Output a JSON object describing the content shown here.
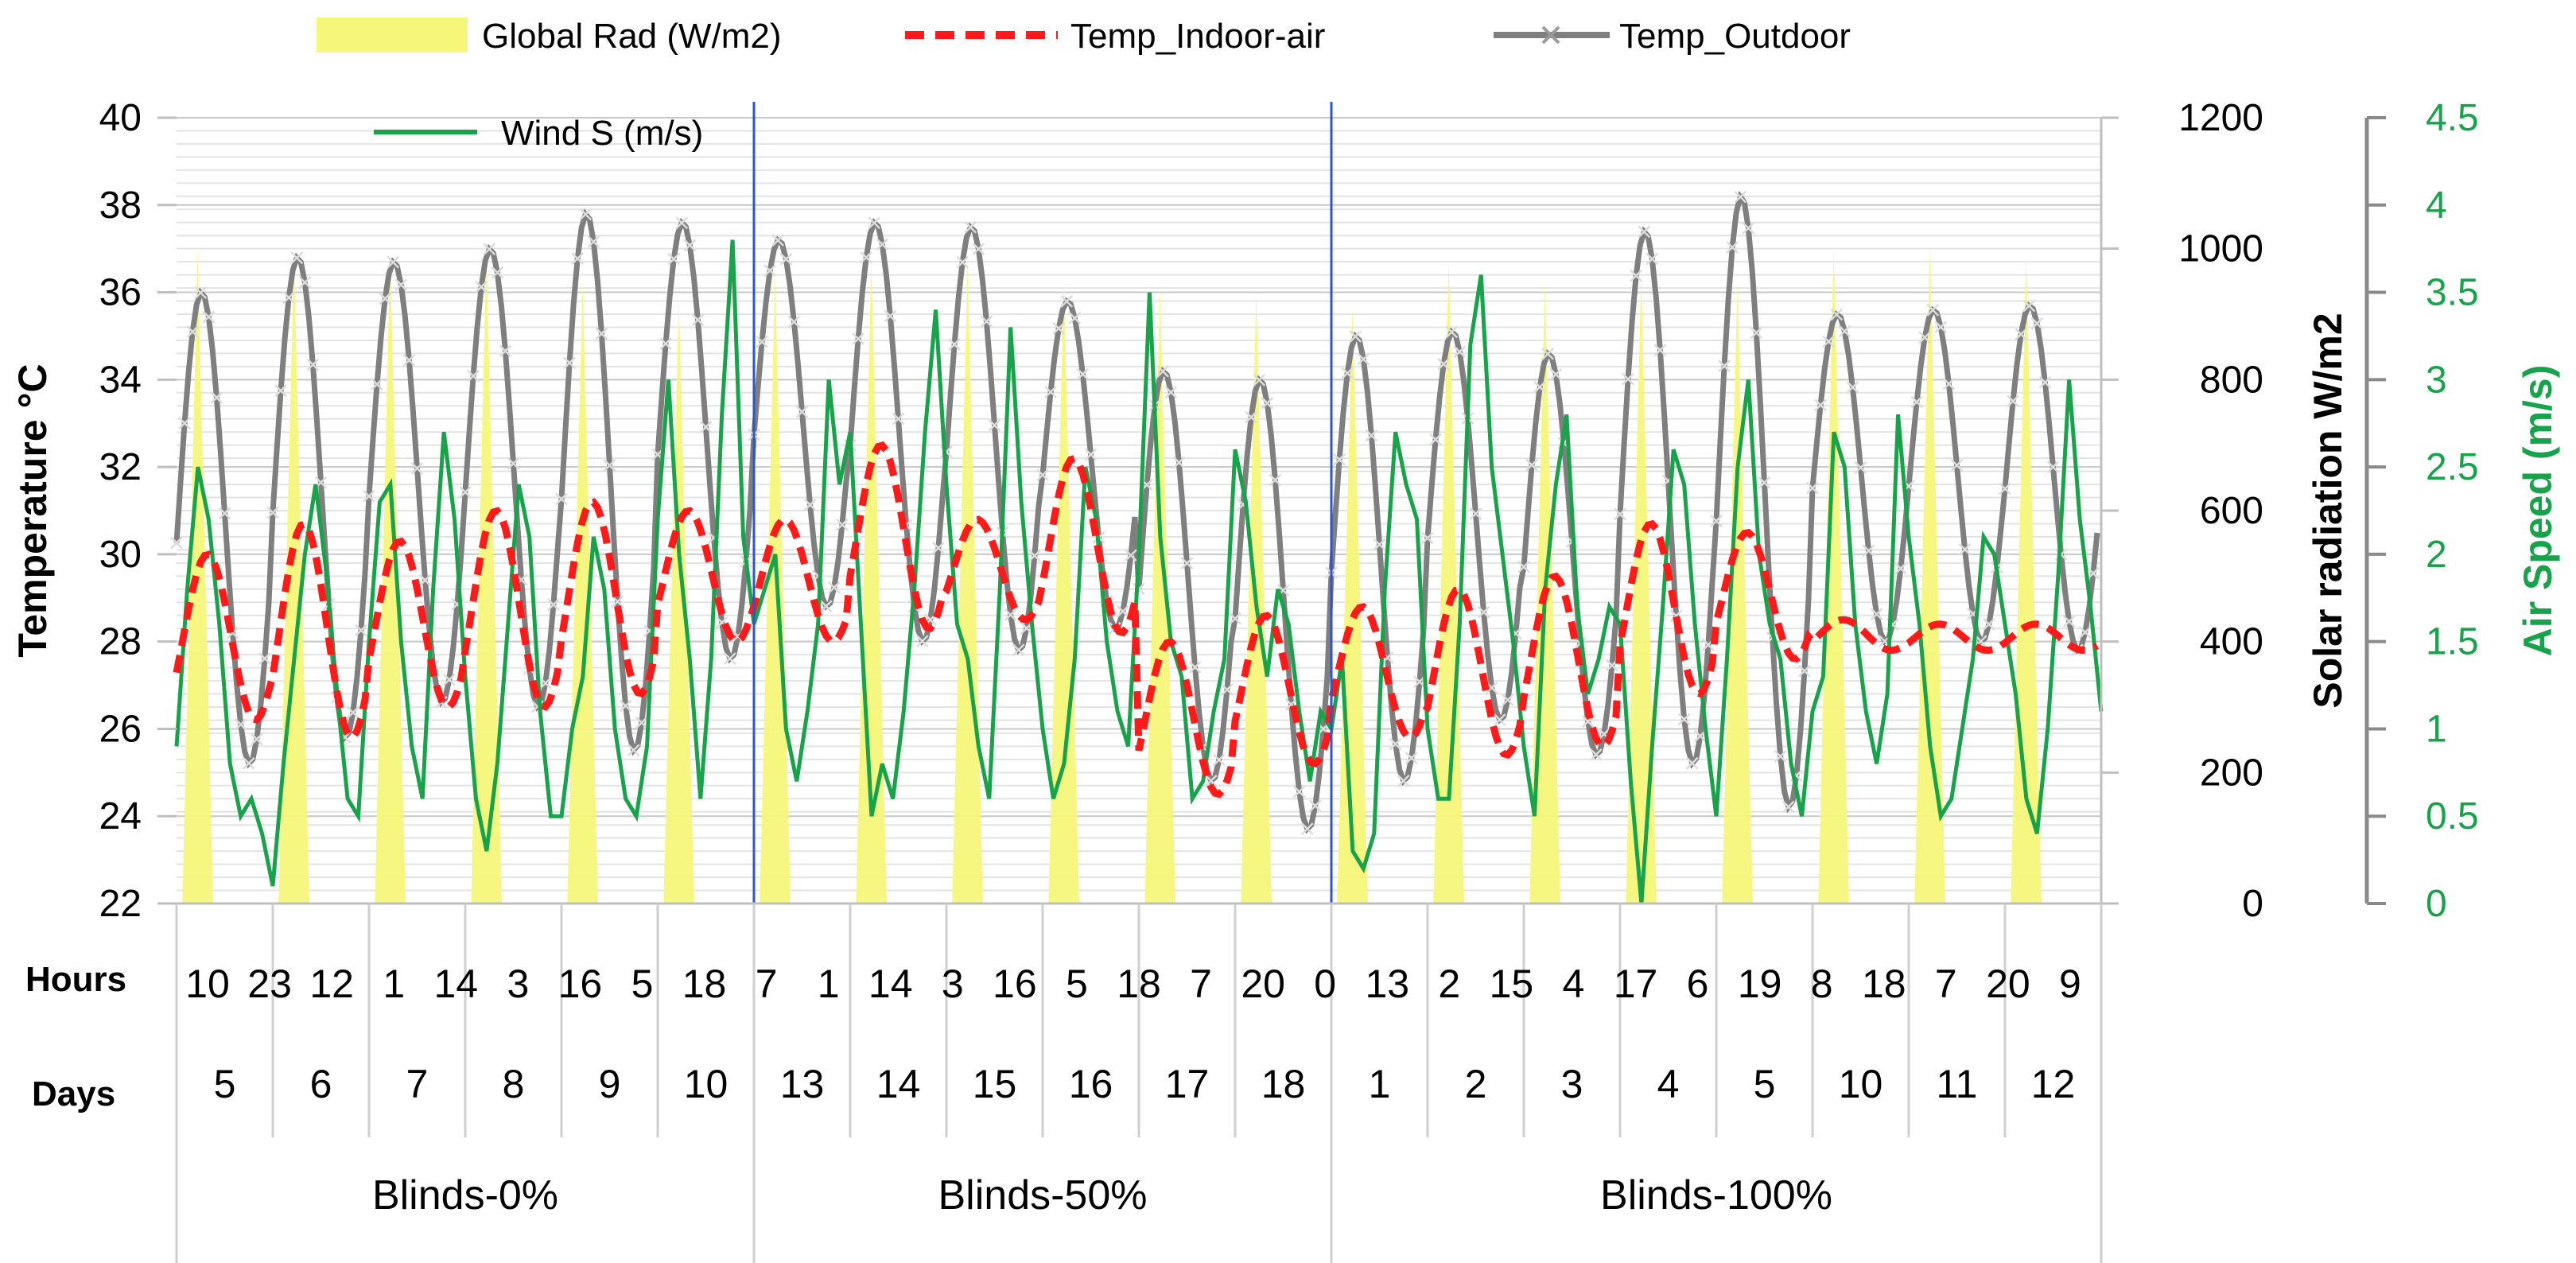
{
  "chart_data": {
    "type": "line",
    "legend": [
      {
        "name": "Global Rad (W/m2)",
        "style": "yellow-area",
        "color": "#f6f77a"
      },
      {
        "name": "Temp_Indoor-air",
        "style": "red-dashed",
        "color": "#ff1a1a"
      },
      {
        "name": "Temp_Outdoor",
        "style": "gray-cross",
        "color": "#7f7f7f"
      },
      {
        "name": "Wind S (m/s)",
        "style": "green-line",
        "color": "#16a34a"
      }
    ],
    "axes": {
      "y_left": {
        "label": "Temperature °C",
        "min": 22,
        "max": 40,
        "ticks": [
          "22",
          "24",
          "26",
          "28",
          "30",
          "32",
          "34",
          "36",
          "38",
          "40"
        ]
      },
      "y_right1": {
        "label": "Solar radiation W/m2",
        "min": 0,
        "max": 1200,
        "ticks": [
          "0",
          "200",
          "400",
          "600",
          "800",
          "1000",
          "1200"
        ]
      },
      "y_right2": {
        "label": "Air Speed (m/s)",
        "min": 0,
        "max": 4.5,
        "ticks": [
          "0",
          "0.5",
          "1",
          "1.5",
          "2",
          "2.5",
          "3",
          "3.5",
          "4",
          "4.5"
        ],
        "color": "#16a34a"
      }
    },
    "row_labels": {
      "hours": "Hours",
      "days": "Days"
    },
    "hours_labels": [
      "10",
      "23",
      "12",
      "1",
      "14",
      "3",
      "16",
      "5",
      "18",
      "7",
      "1",
      "14",
      "3",
      "16",
      "5",
      "18",
      "7",
      "20",
      "0",
      "13",
      "2",
      "15",
      "4",
      "17",
      "6",
      "19",
      "8",
      "18",
      "7",
      "20",
      "9"
    ],
    "days_labels": [
      "5",
      "6",
      "7",
      "8",
      "9",
      "10",
      "13",
      "14",
      "15",
      "16",
      "17",
      "18",
      "1",
      "2",
      "3",
      "4",
      "5",
      "10",
      "11",
      "12"
    ],
    "groups": [
      "Blinds-0%",
      "Blinds-50%",
      "Blinds-100%"
    ],
    "days_count": 20,
    "solar_peaks": [
      1000,
      990,
      990,
      1000,
      950,
      920,
      960,
      980,
      980,
      950,
      940,
      930,
      910,
      980,
      950,
      960,
      950,
      1000,
      1000,
      990
    ],
    "temp_outdoor_daily": [
      {
        "max": 36.0,
        "min": 25.2
      },
      {
        "max": 36.8,
        "min": 25.8
      },
      {
        "max": 36.7,
        "min": 26.6
      },
      {
        "max": 37.0,
        "min": 26.5
      },
      {
        "max": 37.8,
        "min": 25.5
      },
      {
        "max": 37.6,
        "min": 27.6
      },
      {
        "max": 37.2,
        "min": 28.8
      },
      {
        "max": 37.6,
        "min": 28.0
      },
      {
        "max": 37.5,
        "min": 27.8
      },
      {
        "max": 35.8,
        "min": 28.3
      },
      {
        "max": 34.2,
        "min": 24.8
      },
      {
        "max": 34.0,
        "min": 23.7
      },
      {
        "max": 35.0,
        "min": 24.8
      },
      {
        "max": 35.1,
        "min": 26.2
      },
      {
        "max": 34.6,
        "min": 25.4
      },
      {
        "max": 37.4,
        "min": 25.2
      },
      {
        "max": 38.2,
        "min": 24.2
      },
      {
        "max": 35.5,
        "min": 28.0
      },
      {
        "max": 35.6,
        "min": 28.0
      },
      {
        "max": 35.7,
        "min": 27.8
      }
    ],
    "temp_indoor_daily": [
      {
        "max": 30.0,
        "min": 26.2
      },
      {
        "max": 30.7,
        "min": 25.8
      },
      {
        "max": 30.3,
        "min": 26.5
      },
      {
        "max": 31.0,
        "min": 26.5
      },
      {
        "max": 31.2,
        "min": 26.8
      },
      {
        "max": 31.0,
        "min": 28.0
      },
      {
        "max": 30.8,
        "min": 28.0
      },
      {
        "max": 32.5,
        "min": 28.3
      },
      {
        "max": 30.8,
        "min": 28.5
      },
      {
        "max": 32.2,
        "min": 28.2
      },
      {
        "max": 28.0,
        "min": 24.5
      },
      {
        "max": 28.6,
        "min": 25.2
      },
      {
        "max": 28.8,
        "min": 25.8
      },
      {
        "max": 29.2,
        "min": 25.4
      },
      {
        "max": 29.5,
        "min": 25.6
      },
      {
        "max": 30.7,
        "min": 26.8
      },
      {
        "max": 30.5,
        "min": 27.6
      },
      {
        "max": 28.5,
        "min": 27.8
      },
      {
        "max": 28.4,
        "min": 27.8
      },
      {
        "max": 28.4,
        "min": 27.8
      }
    ],
    "wind_speed_ms": [
      0.9,
      1.8,
      2.5,
      2.2,
      1.6,
      0.8,
      0.5,
      0.6,
      0.4,
      0.1,
      0.8,
      1.4,
      2.0,
      2.4,
      1.9,
      1.2,
      0.6,
      0.5,
      1.5,
      2.3,
      2.4,
      1.5,
      0.9,
      0.6,
      1.8,
      2.7,
      2.2,
      1.3,
      0.6,
      0.3,
      0.8,
      1.6,
      2.4,
      2.1,
      1.1,
      0.5,
      0.5,
      1.0,
      1.3,
      2.1,
      1.8,
      1.0,
      0.6,
      0.5,
      0.9,
      2.2,
      3.0,
      2.0,
      1.4,
      0.6,
      1.4,
      2.8,
      3.8,
      2.1,
      1.6,
      1.8,
      2.0,
      1.0,
      0.7,
      1.1,
      1.6,
      3.0,
      2.4,
      2.7,
      1.6,
      0.5,
      0.8,
      0.6,
      1.1,
      1.8,
      2.7,
      3.4,
      2.4,
      1.6,
      1.4,
      0.9,
      0.6,
      1.8,
      3.3,
      2.3,
      1.6,
      1.0,
      0.6,
      0.8,
      1.4,
      2.5,
      2.2,
      1.5,
      1.1,
      0.9,
      2.0,
      3.5,
      2.1,
      1.5,
      1.3,
      0.6,
      0.7,
      1.1,
      1.4,
      2.6,
      2.3,
      1.7,
      1.3,
      1.8,
      1.6,
      1.1,
      0.7,
      1.1,
      1.0,
      1.4,
      0.3,
      0.2,
      0.4,
      1.8,
      2.7,
      2.4,
      2.2,
      1.0,
      0.6,
      0.6,
      1.6,
      3.2,
      3.6,
      2.5,
      2.0,
      1.5,
      0.9,
      0.5,
      1.8,
      2.4,
      2.8,
      1.7,
      1.2,
      1.4,
      1.7,
      1.6,
      0.7,
      0.0,
      0.9,
      1.7,
      2.6,
      2.4,
      1.6,
      1.0,
      0.5,
      1.4,
      2.5,
      3.0,
      2.0,
      1.6,
      1.4,
      0.8,
      0.5,
      1.1,
      1.3,
      2.7,
      2.5,
      1.6,
      1.1,
      0.8,
      1.2,
      2.8,
      2.1,
      1.6,
      0.9,
      0.5,
      0.6,
      1.0,
      1.4,
      2.1,
      2.0,
      1.6,
      1.2,
      0.6,
      0.4,
      1.0,
      1.9,
      3.0,
      2.2,
      1.7,
      1.1
    ]
  }
}
